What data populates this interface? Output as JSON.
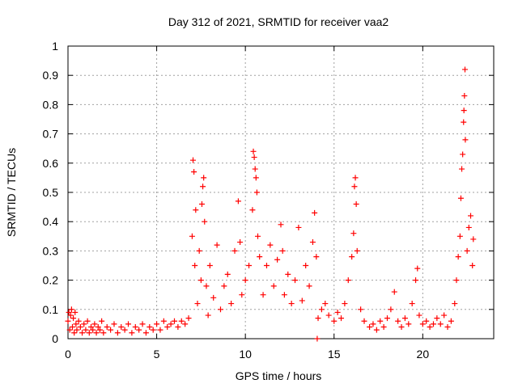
{
  "chart_data": {
    "type": "scatter",
    "title": "Day 312 of 2021, SRMTID for receiver vaa2",
    "xlabel": "GPS time / hours",
    "ylabel": "SRMTID / TECUs",
    "xlim": [
      0,
      24
    ],
    "ylim": [
      0,
      1
    ],
    "xticks": [
      0,
      5,
      10,
      15,
      20
    ],
    "yticks": [
      0,
      0.1,
      0.2,
      0.3,
      0.4,
      0.5,
      0.6,
      0.7,
      0.8,
      0.9,
      1
    ],
    "xtick_labels": [
      "0",
      "5",
      "10",
      "15",
      "20"
    ],
    "ytick_labels": [
      "0",
      "0.1",
      "0.2",
      "0.3",
      "0.4",
      "0.5",
      "0.6",
      "0.7",
      "0.8",
      "0.9",
      "1"
    ],
    "grid": true,
    "marker": "+",
    "marker_color": "#ff0000",
    "series": [
      {
        "name": "SRMTID",
        "points": [
          [
            0.0,
            0.06
          ],
          [
            0.05,
            0.09
          ],
          [
            0.1,
            0.03
          ],
          [
            0.15,
            0.08
          ],
          [
            0.2,
            0.1
          ],
          [
            0.25,
            0.04
          ],
          [
            0.3,
            0.07
          ],
          [
            0.35,
            0.02
          ],
          [
            0.4,
            0.09
          ],
          [
            0.45,
            0.05
          ],
          [
            0.5,
            0.03
          ],
          [
            0.6,
            0.06
          ],
          [
            0.7,
            0.04
          ],
          [
            0.8,
            0.02
          ],
          [
            0.9,
            0.05
          ],
          [
            1.0,
            0.03
          ],
          [
            1.1,
            0.06
          ],
          [
            1.2,
            0.02
          ],
          [
            1.3,
            0.04
          ],
          [
            1.4,
            0.03
          ],
          [
            1.5,
            0.05
          ],
          [
            1.6,
            0.02
          ],
          [
            1.7,
            0.04
          ],
          [
            1.8,
            0.03
          ],
          [
            1.9,
            0.06
          ],
          [
            2.0,
            0.02
          ],
          [
            2.2,
            0.04
          ],
          [
            2.4,
            0.03
          ],
          [
            2.6,
            0.05
          ],
          [
            2.8,
            0.02
          ],
          [
            3.0,
            0.04
          ],
          [
            3.2,
            0.03
          ],
          [
            3.4,
            0.05
          ],
          [
            3.6,
            0.02
          ],
          [
            3.8,
            0.04
          ],
          [
            4.0,
            0.03
          ],
          [
            4.2,
            0.05
          ],
          [
            4.4,
            0.02
          ],
          [
            4.6,
            0.04
          ],
          [
            4.8,
            0.03
          ],
          [
            5.0,
            0.05
          ],
          [
            5.2,
            0.03
          ],
          [
            5.4,
            0.06
          ],
          [
            5.6,
            0.04
          ],
          [
            5.8,
            0.05
          ],
          [
            6.0,
            0.06
          ],
          [
            6.2,
            0.04
          ],
          [
            6.4,
            0.06
          ],
          [
            6.6,
            0.05
          ],
          [
            6.8,
            0.07
          ],
          [
            7.0,
            0.35
          ],
          [
            7.05,
            0.61
          ],
          [
            7.1,
            0.57
          ],
          [
            7.15,
            0.25
          ],
          [
            7.2,
            0.44
          ],
          [
            7.3,
            0.12
          ],
          [
            7.4,
            0.3
          ],
          [
            7.5,
            0.2
          ],
          [
            7.55,
            0.46
          ],
          [
            7.6,
            0.52
          ],
          [
            7.65,
            0.55
          ],
          [
            7.7,
            0.4
          ],
          [
            7.8,
            0.18
          ],
          [
            7.9,
            0.08
          ],
          [
            8.0,
            0.25
          ],
          [
            8.2,
            0.14
          ],
          [
            8.4,
            0.32
          ],
          [
            8.6,
            0.1
          ],
          [
            8.8,
            0.18
          ],
          [
            9.0,
            0.22
          ],
          [
            9.2,
            0.12
          ],
          [
            9.4,
            0.3
          ],
          [
            9.6,
            0.47
          ],
          [
            9.7,
            0.33
          ],
          [
            9.8,
            0.15
          ],
          [
            10.0,
            0.2
          ],
          [
            10.2,
            0.25
          ],
          [
            10.4,
            0.44
          ],
          [
            10.45,
            0.64
          ],
          [
            10.5,
            0.62
          ],
          [
            10.55,
            0.58
          ],
          [
            10.6,
            0.55
          ],
          [
            10.65,
            0.5
          ],
          [
            10.7,
            0.35
          ],
          [
            10.8,
            0.28
          ],
          [
            11.0,
            0.15
          ],
          [
            11.2,
            0.25
          ],
          [
            11.4,
            0.32
          ],
          [
            11.6,
            0.18
          ],
          [
            11.8,
            0.27
          ],
          [
            12.0,
            0.39
          ],
          [
            12.1,
            0.3
          ],
          [
            12.2,
            0.15
          ],
          [
            12.4,
            0.22
          ],
          [
            12.6,
            0.12
          ],
          [
            12.8,
            0.2
          ],
          [
            13.0,
            0.38
          ],
          [
            13.2,
            0.13
          ],
          [
            13.4,
            0.25
          ],
          [
            13.6,
            0.18
          ],
          [
            13.8,
            0.33
          ],
          [
            13.9,
            0.43
          ],
          [
            14.0,
            0.28
          ],
          [
            14.05,
            0.0
          ],
          [
            14.1,
            0.07
          ],
          [
            14.3,
            0.1
          ],
          [
            14.5,
            0.12
          ],
          [
            14.7,
            0.08
          ],
          [
            15.0,
            0.06
          ],
          [
            15.2,
            0.09
          ],
          [
            15.4,
            0.07
          ],
          [
            15.6,
            0.12
          ],
          [
            15.8,
            0.2
          ],
          [
            16.0,
            0.28
          ],
          [
            16.1,
            0.36
          ],
          [
            16.15,
            0.52
          ],
          [
            16.2,
            0.55
          ],
          [
            16.25,
            0.46
          ],
          [
            16.3,
            0.3
          ],
          [
            16.5,
            0.1
          ],
          [
            16.7,
            0.06
          ],
          [
            17.0,
            0.04
          ],
          [
            17.2,
            0.05
          ],
          [
            17.4,
            0.03
          ],
          [
            17.6,
            0.06
          ],
          [
            17.8,
            0.04
          ],
          [
            18.0,
            0.07
          ],
          [
            18.2,
            0.1
          ],
          [
            18.4,
            0.16
          ],
          [
            18.6,
            0.06
          ],
          [
            18.8,
            0.04
          ],
          [
            19.0,
            0.07
          ],
          [
            19.2,
            0.05
          ],
          [
            19.4,
            0.12
          ],
          [
            19.6,
            0.2
          ],
          [
            19.7,
            0.24
          ],
          [
            19.8,
            0.08
          ],
          [
            20.0,
            0.05
          ],
          [
            20.2,
            0.06
          ],
          [
            20.4,
            0.04
          ],
          [
            20.6,
            0.05
          ],
          [
            20.8,
            0.07
          ],
          [
            21.0,
            0.05
          ],
          [
            21.2,
            0.08
          ],
          [
            21.4,
            0.04
          ],
          [
            21.6,
            0.06
          ],
          [
            21.8,
            0.12
          ],
          [
            21.9,
            0.2
          ],
          [
            22.0,
            0.28
          ],
          [
            22.1,
            0.35
          ],
          [
            22.15,
            0.48
          ],
          [
            22.2,
            0.58
          ],
          [
            22.25,
            0.63
          ],
          [
            22.3,
            0.74
          ],
          [
            22.32,
            0.78
          ],
          [
            22.35,
            0.83
          ],
          [
            22.38,
            0.92
          ],
          [
            22.4,
            0.68
          ],
          [
            22.5,
            0.3
          ],
          [
            22.6,
            0.38
          ],
          [
            22.7,
            0.42
          ],
          [
            22.8,
            0.25
          ],
          [
            22.85,
            0.34
          ]
        ]
      }
    ]
  }
}
